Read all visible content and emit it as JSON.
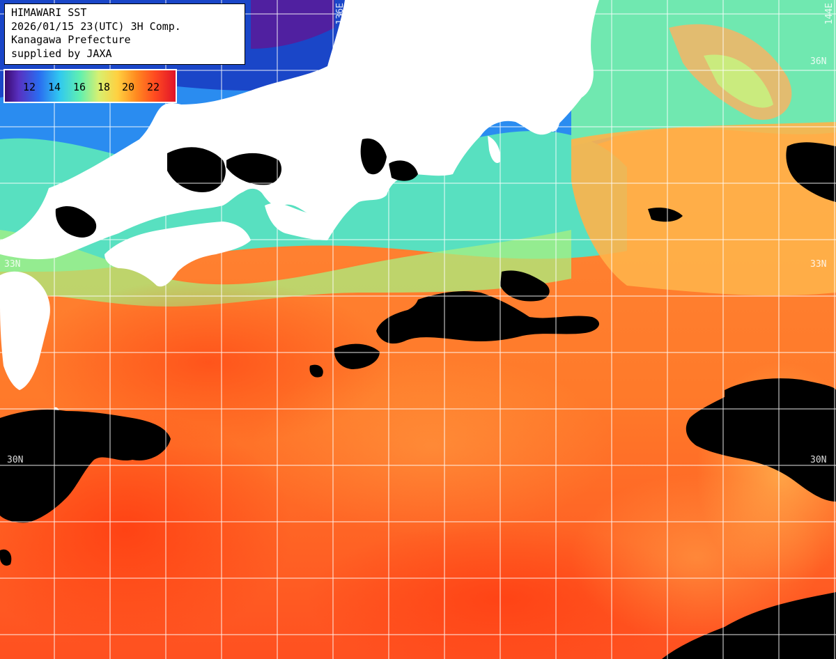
{
  "info": {
    "line1": "HIMAWARI SST",
    "line2": "2026/01/15 23(UTC) 3H Comp.",
    "line3": "Kanagawa Prefecture",
    "line4": "supplied by JAXA"
  },
  "legend": {
    "ticks": [
      "12",
      "14",
      "16",
      "18",
      "20",
      "22"
    ],
    "colors": [
      "#3a0a6e",
      "#2a6cf0",
      "#30c8f0",
      "#60f0b0",
      "#ffd040",
      "#ff8a20",
      "#e0142a"
    ]
  },
  "grid": {
    "lon_labels": [
      "136E",
      "144E"
    ],
    "lat_labels_left": [
      "33N",
      "30N"
    ],
    "lat_labels_right": [
      "36N",
      "33N",
      "30N"
    ]
  },
  "colors": {
    "land": "#ffffff",
    "cloud": "#000000",
    "warm_sea": "#ff7a2a",
    "hot_sea": "#ff4a1a",
    "cool_sea": "#60f0c8",
    "cold_sea": "#2a7cf0",
    "grid": "#ffffff"
  }
}
